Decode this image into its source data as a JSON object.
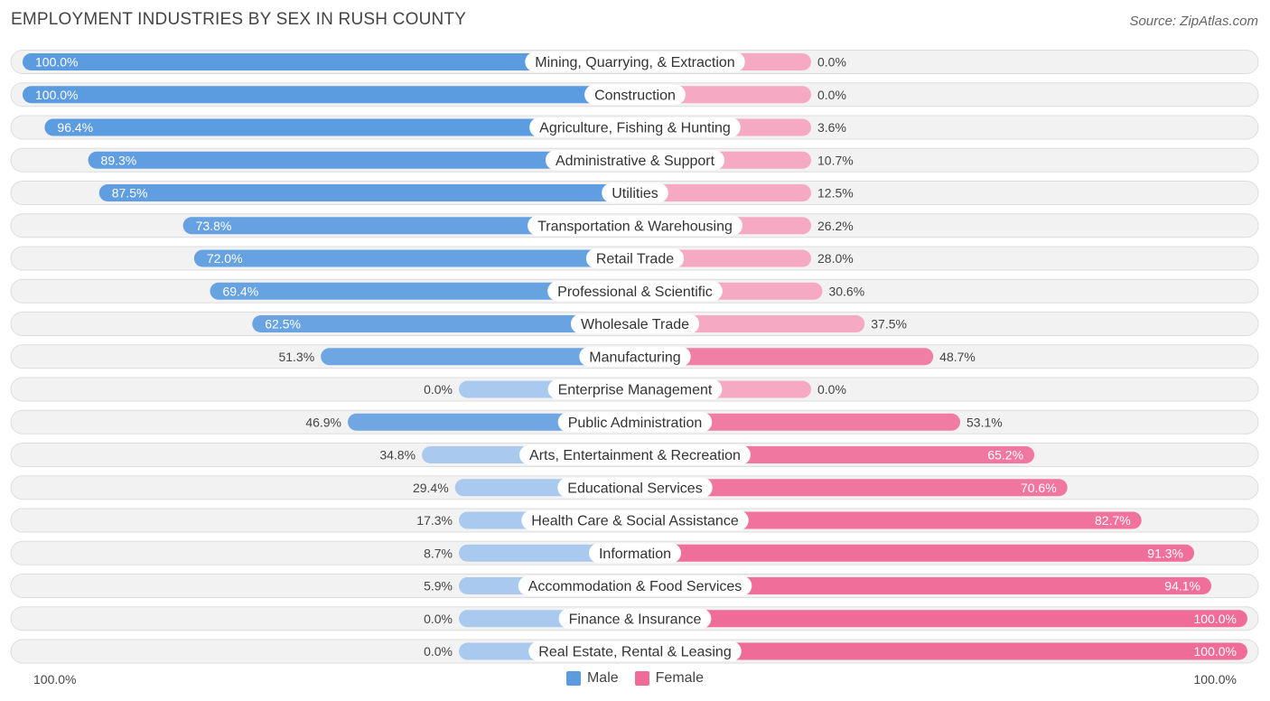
{
  "title": "EMPLOYMENT INDUSTRIES BY SEX IN RUSH COUNTY",
  "source": "Source: ZipAtlas.com",
  "chart_data": {
    "type": "bar",
    "orientation": "horizontal-diverging",
    "categories": [
      "Mining, Quarrying, & Extraction",
      "Construction",
      "Agriculture, Fishing & Hunting",
      "Administrative & Support",
      "Utilities",
      "Transportation & Warehousing",
      "Retail Trade",
      "Professional & Scientific",
      "Wholesale Trade",
      "Manufacturing",
      "Enterprise Management",
      "Public Administration",
      "Arts, Entertainment & Recreation",
      "Educational Services",
      "Health Care & Social Assistance",
      "Information",
      "Accommodation & Food Services",
      "Finance & Insurance",
      "Real Estate, Rental & Leasing"
    ],
    "series": [
      {
        "name": "Male",
        "values": [
          100.0,
          100.0,
          96.4,
          89.3,
          87.5,
          73.8,
          72.0,
          69.4,
          62.5,
          51.3,
          0.0,
          46.9,
          34.8,
          29.4,
          17.3,
          8.7,
          5.9,
          0.0,
          0.0
        ],
        "labels": [
          "100.0%",
          "100.0%",
          "96.4%",
          "89.3%",
          "87.5%",
          "73.8%",
          "72.0%",
          "69.4%",
          "62.5%",
          "51.3%",
          "0.0%",
          "46.9%",
          "34.8%",
          "29.4%",
          "17.3%",
          "8.7%",
          "5.9%",
          "0.0%",
          "0.0%"
        ]
      },
      {
        "name": "Female",
        "values": [
          0.0,
          0.0,
          3.6,
          10.7,
          12.5,
          26.2,
          28.0,
          30.6,
          37.5,
          48.7,
          0.0,
          53.1,
          65.2,
          70.6,
          82.7,
          91.3,
          94.1,
          100.0,
          100.0
        ],
        "labels": [
          "0.0%",
          "0.0%",
          "3.6%",
          "10.7%",
          "12.5%",
          "26.2%",
          "28.0%",
          "30.6%",
          "37.5%",
          "48.7%",
          "0.0%",
          "53.1%",
          "65.2%",
          "70.6%",
          "82.7%",
          "91.3%",
          "94.1%",
          "100.0%",
          "100.0%"
        ]
      }
    ],
    "xlim": [
      0,
      100
    ],
    "axis_left_label": "100.0%",
    "axis_right_label": "100.0%",
    "legend_position": "bottom-center"
  },
  "legend": [
    {
      "name": "Male",
      "color": "#5b9be0"
    },
    {
      "name": "Female",
      "color": "#f06c98"
    }
  ],
  "colors": {
    "male_strong": "#5b9be0",
    "male_light": "#a9c9ee",
    "female_strong": "#f06c98",
    "female_light": "#f6a9c3",
    "row_bg": "#f2f2f2",
    "row_border": "#dddddd"
  }
}
